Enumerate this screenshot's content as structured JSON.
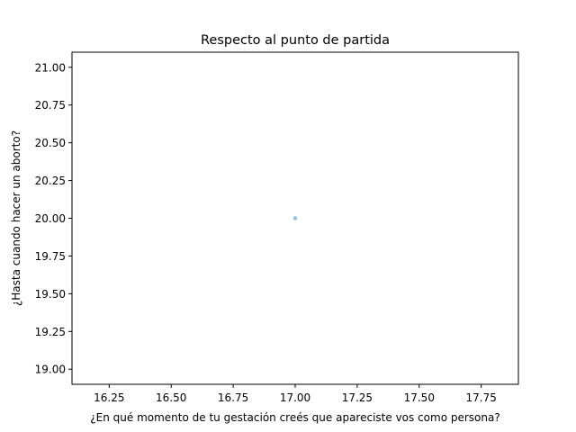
{
  "chart_data": {
    "type": "scatter",
    "title": "Respecto al punto de partida",
    "xlabel": "¿En qué momento de tu gestación creés que apareciste vos como persona?",
    "ylabel": "¿Hasta cuando hacer un aborto?",
    "xlim": [
      16.1,
      17.9
    ],
    "ylim": [
      18.9,
      21.1
    ],
    "xticks": [
      16.25,
      16.5,
      16.75,
      17.0,
      17.25,
      17.5,
      17.75
    ],
    "xtick_labels": [
      "16.25",
      "16.50",
      "16.75",
      "17.00",
      "17.25",
      "17.50",
      "17.75"
    ],
    "yticks": [
      19.0,
      19.25,
      19.5,
      19.75,
      20.0,
      20.25,
      20.5,
      20.75,
      21.0
    ],
    "ytick_labels": [
      "19.00",
      "19.25",
      "19.50",
      "19.75",
      "20.00",
      "20.25",
      "20.50",
      "20.75",
      "21.00"
    ],
    "grid": false,
    "series": [
      {
        "points": [
          {
            "x": 17.0,
            "y": 20.0
          }
        ],
        "color": "#1f77b4",
        "alpha": 0.5
      }
    ]
  }
}
